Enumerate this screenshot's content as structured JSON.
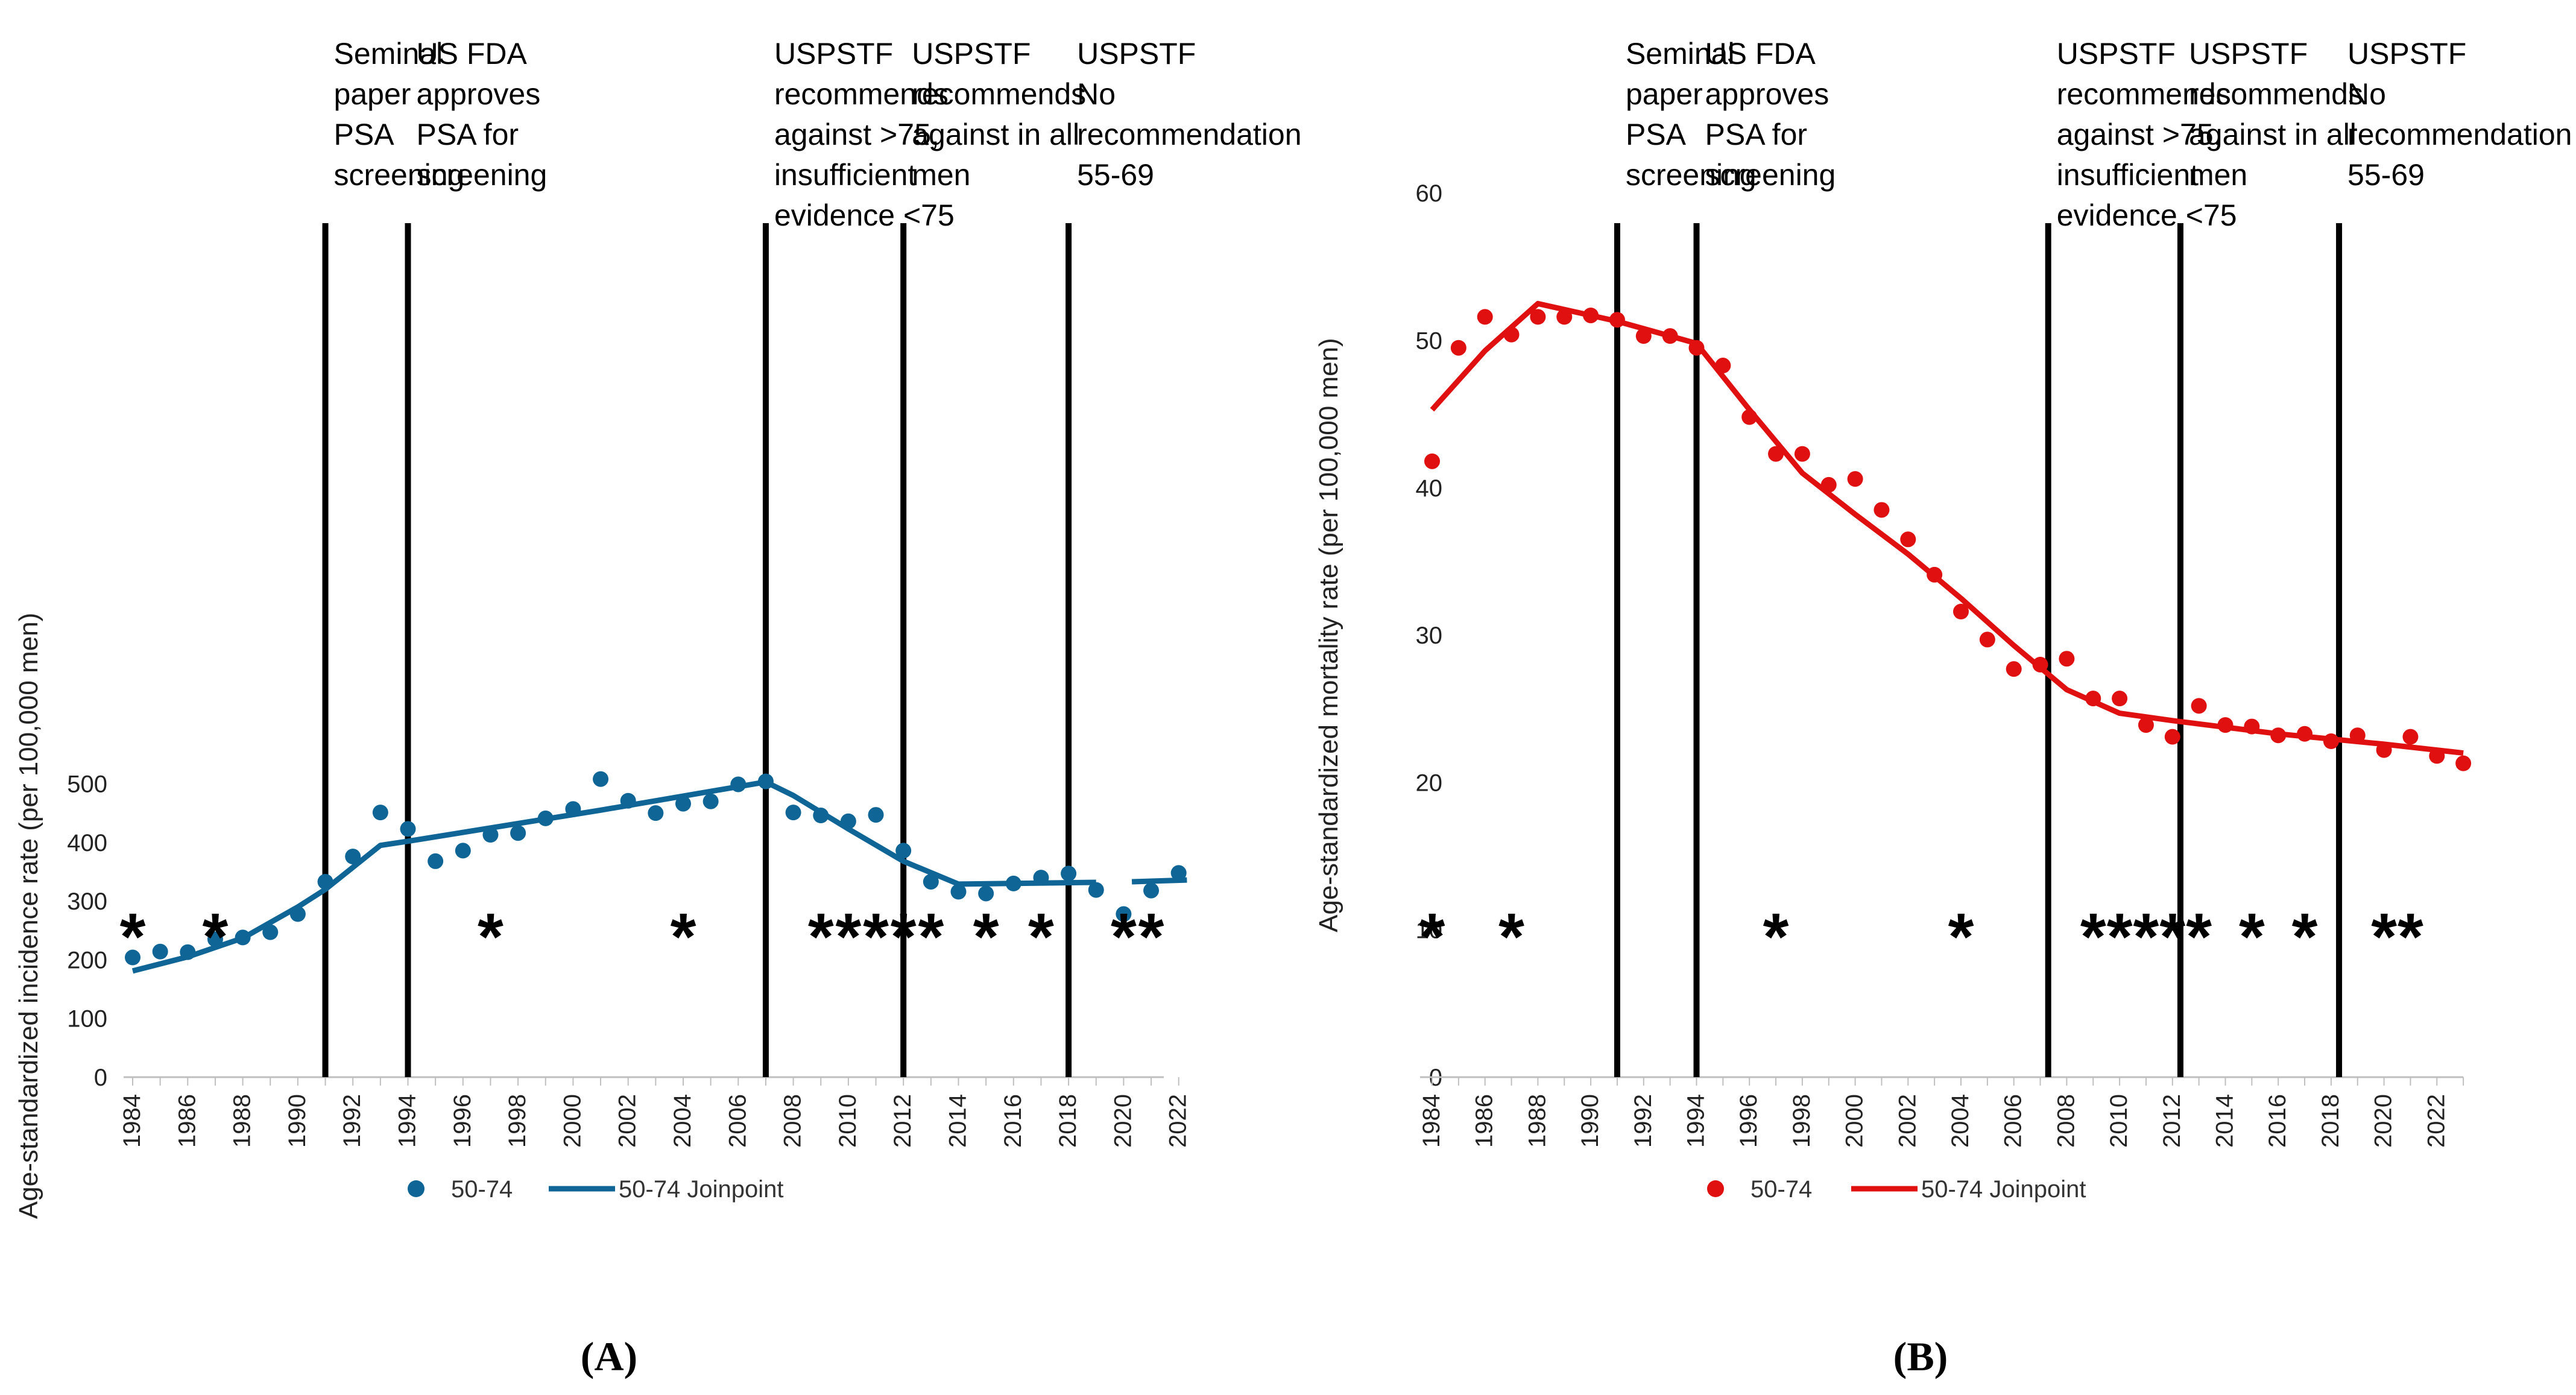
{
  "chart_data": [
    {
      "type": "scatter",
      "panel_label": "A",
      "ylabel": "Age-standardized incidence rate (per 100,000 men)",
      "xlabel": "",
      "ylim": [
        0,
        550
      ],
      "yticks": [
        0,
        100,
        200,
        300,
        400,
        500
      ],
      "xlim": [
        1984,
        2022
      ],
      "xticks": [
        1984,
        1986,
        1988,
        1990,
        1992,
        1994,
        1996,
        1998,
        2000,
        2002,
        2004,
        2006,
        2008,
        2010,
        2012,
        2014,
        2016,
        2018,
        2020,
        2022
      ],
      "grid": false,
      "color": "#0f6596",
      "legend": {
        "position": "bottom",
        "entries": [
          "50-74",
          "50-74 Joinpoint"
        ]
      },
      "series": [
        {
          "name": "50-74",
          "kind": "points",
          "x": [
            1984,
            1985,
            1986,
            1987,
            1988,
            1989,
            1990,
            1991,
            1992,
            1993,
            1994,
            1995,
            1996,
            1997,
            1998,
            1999,
            2000,
            2001,
            2002,
            2003,
            2004,
            2005,
            2006,
            2007,
            2008,
            2009,
            2010,
            2011,
            2012,
            2013,
            2014,
            2015,
            2016,
            2017,
            2018,
            2019,
            2020,
            2021,
            2022
          ],
          "y": [
            204,
            214,
            213,
            235,
            238,
            247,
            278,
            333,
            376,
            451,
            423,
            368,
            386,
            413,
            416,
            441,
            457,
            508,
            471,
            450,
            466,
            470,
            499,
            504,
            451,
            446,
            436,
            447,
            386,
            333,
            316,
            313,
            330,
            340,
            347,
            319,
            278,
            318,
            348
          ]
        },
        {
          "name": "50-74 Joinpoint",
          "kind": "line",
          "segments": [
            {
              "x": [
                1984,
                1986,
                1988,
                1990,
                1991,
                1993,
                1994,
                2001,
                2007,
                2008,
                2010,
                2012,
                2014,
                2019
              ],
              "y": [
                181,
                205,
                237,
                290,
                320,
                395,
                402,
                455,
                503,
                480,
                423,
                368,
                329,
                332
              ]
            },
            {
              "x": [
                2020.3,
                2022.3
              ],
              "y": [
                333,
                336
              ]
            }
          ]
        }
      ],
      "event_lines": [
        {
          "x": 1991,
          "label_lines": [
            "Seminal",
            "paper",
            "PSA",
            "screening"
          ]
        },
        {
          "x": 1994,
          "label_lines": [
            "US FDA",
            "approves",
            "PSA for",
            "screening"
          ]
        },
        {
          "x": 2007,
          "label_lines": [
            "USPSTF",
            "recommends",
            "against >75,",
            "insufficient",
            "evidence <75"
          ]
        },
        {
          "x": 2012,
          "label_lines": [
            "USPSTF",
            "recommends",
            "against in all",
            "men"
          ]
        },
        {
          "x": 2018,
          "label_lines": [
            "USPSTF",
            "No",
            "recommendation",
            "55-69"
          ]
        }
      ],
      "asterisks": {
        "symbol": "*",
        "x": [
          1984,
          1987,
          1997,
          2004,
          2009,
          2010,
          2011,
          2012,
          2013,
          2015,
          2017,
          2020,
          2021
        ]
      }
    },
    {
      "type": "scatter",
      "panel_label": "B",
      "ylabel": "Age-standardized mortality rate (per 100,000 men)",
      "xlabel": "",
      "ylim": [
        0,
        60
      ],
      "yticks": [
        0,
        10,
        20,
        30,
        40,
        50,
        60
      ],
      "xlim": [
        1984,
        2023
      ],
      "xticks": [
        1984,
        1986,
        1988,
        1990,
        1992,
        1994,
        1996,
        1998,
        2000,
        2002,
        2004,
        2006,
        2008,
        2010,
        2012,
        2014,
        2016,
        2018,
        2020,
        2022
      ],
      "grid": false,
      "color": "#e01010",
      "legend": {
        "position": "bottom",
        "entries": [
          "50-74",
          "50-74 Joinpoint"
        ]
      },
      "series": [
        {
          "name": "50-74",
          "kind": "points",
          "x": [
            1984,
            1985,
            1986,
            1987,
            1988,
            1989,
            1990,
            1991,
            1992,
            1993,
            1994,
            1995,
            1996,
            1997,
            1998,
            1999,
            2000,
            2001,
            2002,
            2003,
            2004,
            2005,
            2006,
            2007,
            2008,
            2009,
            2010,
            2011,
            2012,
            2013,
            2014,
            2015,
            2016,
            2017,
            2018,
            2019,
            2020,
            2021,
            2022,
            2023
          ],
          "y": [
            41.8,
            49.5,
            51.6,
            50.4,
            51.6,
            51.6,
            51.7,
            51.4,
            50.3,
            50.3,
            49.5,
            48.3,
            44.8,
            42.3,
            42.3,
            40.2,
            40.6,
            38.5,
            36.5,
            34.1,
            31.6,
            29.7,
            27.7,
            28.0,
            28.4,
            25.7,
            25.7,
            23.9,
            23.1,
            25.2,
            23.9,
            23.8,
            23.2,
            23.3,
            22.8,
            23.2,
            22.2,
            23.1,
            21.8,
            21.3
          ]
        },
        {
          "name": "50-74 Joinpoint",
          "kind": "line",
          "segments": [
            {
              "x": [
                1984,
                1986,
                1988,
                1991,
                1994,
                1996,
                1998,
                2000,
                2002,
                2004,
                2006,
                2008,
                2010,
                2012,
                2016,
                2020,
                2023
              ],
              "y": [
                45.3,
                49.3,
                52.5,
                51.3,
                49.8,
                45.3,
                41.0,
                38.2,
                35.5,
                32.5,
                29.3,
                26.3,
                24.7,
                24.2,
                23.3,
                22.6,
                22.0
              ]
            }
          ]
        }
      ],
      "event_lines": [
        {
          "x": 1991,
          "label_lines": [
            "Seminal",
            "paper",
            "PSA",
            "screening"
          ]
        },
        {
          "x": 1994,
          "label_lines": [
            "US FDA",
            "approves",
            "PSA for",
            "screening"
          ]
        },
        {
          "x": 2007.3,
          "label_lines": [
            "USPSTF",
            "recommends",
            "against >75,",
            "insufficient",
            "evidence <75"
          ]
        },
        {
          "x": 2012.3,
          "label_lines": [
            "USPSTF",
            "recommends",
            "against in all",
            "men"
          ]
        },
        {
          "x": 2018.3,
          "label_lines": [
            "USPSTF",
            "No",
            "recommendation",
            "55-69"
          ]
        }
      ],
      "asterisks": {
        "symbol": "*",
        "x": [
          1984,
          1987,
          1997,
          2004,
          2009,
          2010,
          2011,
          2012,
          2013,
          2015,
          2017,
          2020,
          2021
        ]
      }
    }
  ]
}
